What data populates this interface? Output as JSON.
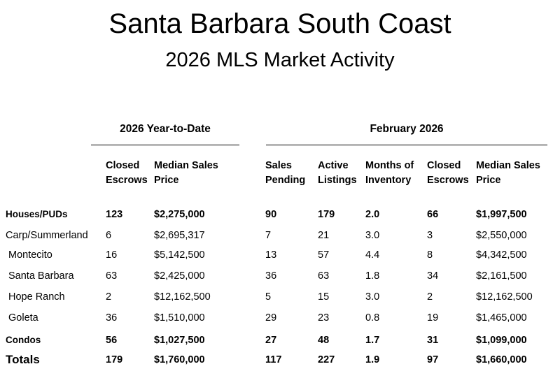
{
  "title": "Santa Barbara South Coast",
  "subtitle": "2026 MLS Market Activity",
  "sections": {
    "ytd": "2026 Year-to-Date",
    "month": "February 2026"
  },
  "columns": [
    [
      "Closed",
      "Escrows"
    ],
    [
      "Median Sales",
      "Price"
    ],
    [
      "Sales",
      "Pending"
    ],
    [
      "Active",
      "Listings"
    ],
    [
      "Months of",
      "Inventory"
    ],
    [
      "Closed",
      "Escrows"
    ],
    [
      "Median Sales",
      "Price"
    ]
  ],
  "rows": [
    {
      "label": "Houses/PUDs",
      "style": "bold",
      "values": [
        "123",
        "$2,275,000",
        "90",
        "179",
        "2.0",
        "66",
        "$1,997,500"
      ]
    },
    {
      "label": "Carp/Summerland",
      "style": "normal",
      "values": [
        "6",
        "$2,695,317",
        "7",
        "21",
        "3.0",
        "3",
        "$2,550,000"
      ]
    },
    {
      "label": "Montecito",
      "style": "indent",
      "values": [
        "16",
        "$5,142,500",
        "13",
        "57",
        "4.4",
        "8",
        "$4,342,500"
      ]
    },
    {
      "label": "Santa Barbara",
      "style": "indent",
      "values": [
        "63",
        "$2,425,000",
        "36",
        "63",
        "1.8",
        "34",
        "$2,161,500"
      ]
    },
    {
      "label": "Hope Ranch",
      "style": "indent",
      "values": [
        "2",
        "$12,162,500",
        "5",
        "15",
        "3.0",
        "2",
        "$12,162,500"
      ]
    },
    {
      "label": "Goleta",
      "style": "indent",
      "values": [
        "36",
        "$1,510,000",
        "29",
        "23",
        "0.8",
        "19",
        "$1,465,000"
      ]
    },
    {
      "label": "Condos",
      "style": "bold",
      "values": [
        "56",
        "$1,027,500",
        "27",
        "48",
        "1.7",
        "31",
        "$1,099,000"
      ]
    },
    {
      "label": "Totals",
      "style": "total",
      "values": [
        "179",
        "$1,760,000",
        "117",
        "227",
        "1.9",
        "97",
        "$1,660,000"
      ]
    }
  ]
}
